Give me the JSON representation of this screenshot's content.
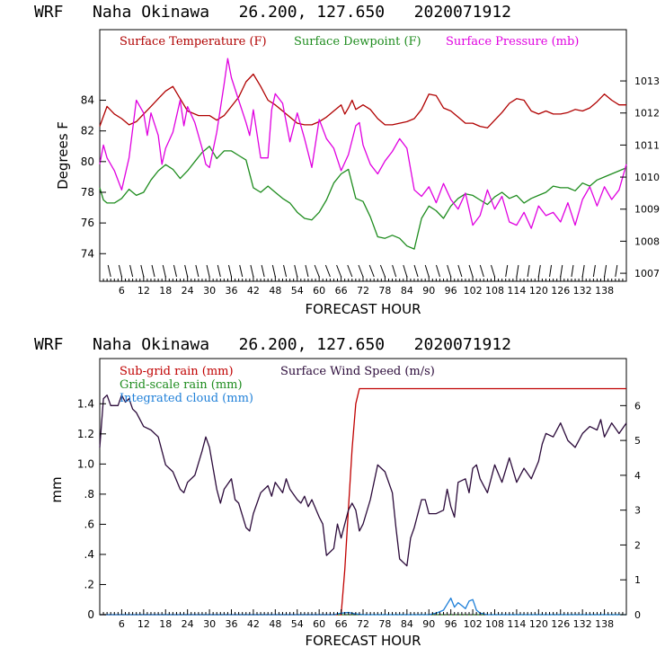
{
  "colors": {
    "temperature": "#b00000",
    "dewpoint": "#1e8c1e",
    "pressure": "#e000e0",
    "subgrid_rain": "#c00000",
    "gridscale_rain": "#1e8c1e",
    "cloud": "#1e7fd8",
    "wind": "#2b0a3a"
  },
  "chart_data": [
    {
      "type": "line",
      "title": "WRF   Naha Okinawa   26.200, 127.650   2020071912",
      "xlabel": "FORECAST HOUR",
      "ylabel": "Degrees F",
      "xlim": [
        0,
        144
      ],
      "ylim": [
        72.2,
        88.6
      ],
      "y2lim": [
        1006.75,
        1014.6
      ],
      "xticks": [
        "6",
        "12",
        "18",
        "24",
        "30",
        "36",
        "42",
        "48",
        "54",
        "60",
        "66",
        "72",
        "78",
        "84",
        "90",
        "96",
        "102",
        "108",
        "114",
        "120",
        "126",
        "132",
        "138"
      ],
      "yticks": [
        "74",
        "76",
        "78",
        "80",
        "82",
        "84"
      ],
      "y2ticks": [
        "1007",
        "1008",
        "1009",
        "1010",
        "1011",
        "1012",
        "1013"
      ],
      "grid": false,
      "legend": "top",
      "legend_entries": [
        "Surface Temperature (F)",
        "Surface Dewpoint (F)",
        "Surface Pressure (mb)"
      ],
      "series": [
        {
          "name": "Surface Temperature (F)",
          "axis": "left",
          "x": [
            0,
            2,
            4,
            6,
            8,
            10,
            12,
            14,
            16,
            18,
            20,
            22,
            24,
            27,
            30,
            32,
            34,
            36,
            38,
            40,
            42,
            44,
            46,
            48,
            50,
            52,
            54,
            56,
            58,
            60,
            62,
            64,
            66,
            67,
            68,
            69,
            70,
            72,
            74,
            76,
            78,
            80,
            82,
            84,
            86,
            88,
            90,
            92,
            94,
            96,
            98,
            100,
            102,
            104,
            106,
            108,
            110,
            112,
            114,
            116,
            118,
            120,
            122,
            124,
            126,
            128,
            130,
            132,
            134,
            136,
            138,
            140,
            142,
            144
          ],
          "y": [
            82.3,
            83.6,
            83.1,
            82.8,
            82.4,
            82.6,
            83.1,
            83.6,
            84.1,
            84.6,
            84.9,
            84.1,
            83.3,
            83.0,
            83.0,
            82.7,
            83.0,
            83.6,
            84.2,
            85.2,
            85.7,
            84.9,
            84.0,
            83.7,
            83.3,
            82.9,
            82.5,
            82.4,
            82.4,
            82.6,
            82.9,
            83.3,
            83.7,
            83.1,
            83.5,
            84.0,
            83.4,
            83.7,
            83.4,
            82.8,
            82.4,
            82.4,
            82.5,
            82.6,
            82.8,
            83.4,
            84.4,
            84.3,
            83.5,
            83.3,
            82.9,
            82.5,
            82.5,
            82.3,
            82.2,
            82.7,
            83.2,
            83.8,
            84.1,
            84.0,
            83.3,
            83.1,
            83.3,
            83.1,
            83.1,
            83.2,
            83.4,
            83.3,
            83.5,
            83.9,
            84.4,
            84.0,
            83.7,
            83.7
          ]
        },
        {
          "name": "Surface Dewpoint (F)",
          "axis": "left",
          "x": [
            0,
            1,
            2,
            4,
            6,
            8,
            10,
            12,
            14,
            16,
            18,
            20,
            22,
            24,
            26,
            28,
            30,
            32,
            34,
            36,
            38,
            40,
            42,
            44,
            46,
            48,
            50,
            52,
            54,
            56,
            58,
            60,
            62,
            64,
            66,
            68,
            70,
            72,
            74,
            76,
            78,
            80,
            82,
            84,
            86,
            88,
            90,
            92,
            94,
            96,
            98,
            100,
            102,
            104,
            106,
            108,
            110,
            112,
            114,
            116,
            118,
            120,
            122,
            124,
            126,
            128,
            130,
            132,
            134,
            136,
            138,
            140,
            142,
            144
          ],
          "y": [
            78.3,
            77.5,
            77.3,
            77.3,
            77.6,
            78.2,
            77.8,
            78.0,
            78.8,
            79.4,
            79.8,
            79.5,
            78.9,
            79.4,
            80.0,
            80.6,
            81.0,
            80.2,
            80.7,
            80.7,
            80.4,
            80.1,
            78.3,
            78.0,
            78.4,
            78.0,
            77.6,
            77.3,
            76.7,
            76.3,
            76.2,
            76.7,
            77.5,
            78.6,
            79.2,
            79.5,
            77.6,
            77.4,
            76.4,
            75.1,
            75.0,
            75.2,
            75.0,
            74.5,
            74.3,
            76.3,
            77.1,
            76.8,
            76.3,
            77.1,
            77.6,
            77.9,
            77.8,
            77.5,
            77.2,
            77.7,
            78.0,
            77.6,
            77.8,
            77.3,
            77.6,
            77.8,
            78.0,
            78.4,
            78.3,
            78.3,
            78.1,
            78.6,
            78.4,
            78.8,
            79.0,
            79.2,
            79.4,
            79.6
          ]
        },
        {
          "name": "Surface Pressure (mb)",
          "axis": "right",
          "x": [
            0,
            1,
            2,
            4,
            6,
            8,
            10,
            12,
            13,
            14,
            16,
            17,
            18,
            20,
            22,
            23,
            24,
            26,
            28,
            29,
            30,
            32,
            34,
            35,
            36,
            38,
            40,
            41,
            42,
            44,
            46,
            47,
            48,
            50,
            52,
            54,
            56,
            58,
            60,
            62,
            64,
            66,
            68,
            70,
            71,
            72,
            74,
            76,
            78,
            80,
            82,
            84,
            86,
            88,
            90,
            92,
            94,
            96,
            98,
            100,
            102,
            104,
            106,
            108,
            110,
            112,
            114,
            116,
            118,
            120,
            122,
            124,
            126,
            128,
            130,
            132,
            134,
            136,
            138,
            140,
            142,
            144
          ],
          "y": [
            1010.4,
            1011.0,
            1010.6,
            1010.2,
            1009.6,
            1010.6,
            1012.4,
            1012.0,
            1011.3,
            1012.0,
            1011.3,
            1010.4,
            1010.9,
            1011.4,
            1012.4,
            1011.6,
            1012.2,
            1011.7,
            1010.9,
            1010.4,
            1010.3,
            1011.4,
            1012.9,
            1013.7,
            1013.1,
            1012.4,
            1011.7,
            1011.3,
            1012.1,
            1010.6,
            1010.6,
            1012.1,
            1012.6,
            1012.3,
            1011.1,
            1012.0,
            1011.2,
            1010.3,
            1011.8,
            1011.2,
            1010.9,
            1010.2,
            1010.7,
            1011.6,
            1011.7,
            1011.0,
            1010.4,
            1010.1,
            1010.5,
            1010.8,
            1011.2,
            1010.9,
            1009.6,
            1009.4,
            1009.7,
            1009.2,
            1009.8,
            1009.3,
            1009.0,
            1009.5,
            1008.5,
            1008.8,
            1009.6,
            1009.0,
            1009.4,
            1008.6,
            1008.5,
            1008.9,
            1008.4,
            1009.1,
            1008.8,
            1008.9,
            1008.6,
            1009.2,
            1008.5,
            1009.3,
            1009.7,
            1009.1,
            1009.7,
            1009.3,
            1009.6,
            1010.4
          ]
        }
      ],
      "wind_barbs": true
    },
    {
      "type": "line",
      "title": "WRF   Naha Okinawa   26.200, 127.650   2020071912",
      "xlabel": "FORECAST HOUR",
      "ylabel": "mm",
      "xlim": [
        0,
        144
      ],
      "ylim": [
        0,
        1.7
      ],
      "y2lim": [
        0,
        7.35
      ],
      "xticks": [
        "6",
        "12",
        "18",
        "24",
        "30",
        "36",
        "42",
        "48",
        "54",
        "60",
        "66",
        "72",
        "78",
        "84",
        "90",
        "96",
        "102",
        "108",
        "114",
        "120",
        "126",
        "132",
        "138"
      ],
      "yticks": [
        "0",
        ".2",
        ".4",
        ".6",
        ".8",
        "1.0",
        "1.2",
        "1.4"
      ],
      "y2ticks": [
        "0",
        "1",
        "2",
        "3",
        "4",
        "5",
        "6"
      ],
      "grid": false,
      "legend": "top-left",
      "legend_entries": [
        "Sub-grid rain (mm)",
        "Grid-scale rain (mm)",
        "Integrated cloud (mm)",
        "Surface Wind Speed (m/s)"
      ],
      "series": [
        {
          "name": "Sub-grid rain (mm)",
          "axis": "left",
          "x": [
            0,
            66,
            67,
            68,
            69,
            70,
            71,
            144
          ],
          "y": [
            0,
            0,
            0.3,
            0.7,
            1.1,
            1.4,
            1.5,
            1.5
          ]
        },
        {
          "name": "Grid-scale rain (mm)",
          "axis": "left",
          "x": [
            0,
            144
          ],
          "y": [
            0,
            0
          ]
        },
        {
          "name": "Integrated cloud (mm)",
          "axis": "left",
          "x": [
            0,
            64,
            66,
            68,
            70,
            72,
            90,
            92,
            94,
            95,
            96,
            97,
            98,
            99,
            100,
            101,
            102,
            103,
            104,
            106,
            144
          ],
          "y": [
            0,
            0,
            0.01,
            0.015,
            0.005,
            0,
            0,
            0.01,
            0.03,
            0.07,
            0.11,
            0.05,
            0.08,
            0.06,
            0.04,
            0.09,
            0.1,
            0.03,
            0.01,
            0,
            0
          ]
        },
        {
          "name": "Surface Wind Speed (m/s)",
          "axis": "right",
          "x": [
            0,
            1,
            2,
            3,
            4,
            5,
            6,
            7,
            8,
            9,
            10,
            11,
            12,
            14,
            16,
            18,
            20,
            22,
            23,
            24,
            26,
            28,
            29,
            30,
            32,
            33,
            34,
            36,
            37,
            38,
            40,
            41,
            42,
            44,
            46,
            47,
            48,
            50,
            51,
            52,
            54,
            55,
            56,
            57,
            58,
            60,
            61,
            62,
            64,
            65,
            66,
            68,
            69,
            70,
            71,
            72,
            74,
            76,
            78,
            80,
            81,
            82,
            84,
            85,
            86,
            88,
            89,
            90,
            92,
            94,
            95,
            96,
            97,
            98,
            100,
            101,
            102,
            103,
            104,
            106,
            108,
            110,
            112,
            114,
            116,
            118,
            120,
            121,
            122,
            124,
            126,
            128,
            130,
            132,
            134,
            136,
            137,
            138,
            140,
            142,
            144
          ],
          "y": [
            4.8,
            6.2,
            6.3,
            6.0,
            6.0,
            6.0,
            6.3,
            6.1,
            6.2,
            5.9,
            5.8,
            5.6,
            5.4,
            5.3,
            5.1,
            4.3,
            4.1,
            3.6,
            3.5,
            3.8,
            4.0,
            4.7,
            5.1,
            4.8,
            3.6,
            3.2,
            3.6,
            3.9,
            3.3,
            3.2,
            2.5,
            2.4,
            2.9,
            3.5,
            3.7,
            3.4,
            3.8,
            3.5,
            3.9,
            3.6,
            3.3,
            3.2,
            3.4,
            3.1,
            3.3,
            2.8,
            2.6,
            1.7,
            1.9,
            2.6,
            2.2,
            3.0,
            3.2,
            3.0,
            2.4,
            2.6,
            3.3,
            4.3,
            4.1,
            3.5,
            2.5,
            1.6,
            1.4,
            2.2,
            2.5,
            3.3,
            3.3,
            2.9,
            2.9,
            3.0,
            3.6,
            3.1,
            2.8,
            3.8,
            3.9,
            3.5,
            4.2,
            4.3,
            3.9,
            3.5,
            4.3,
            3.8,
            4.5,
            3.8,
            4.2,
            3.9,
            4.4,
            4.9,
            5.2,
            5.1,
            5.5,
            5.0,
            4.8,
            5.2,
            5.4,
            5.3,
            5.6,
            5.1,
            5.5,
            5.2,
            5.5
          ]
        }
      ]
    }
  ]
}
